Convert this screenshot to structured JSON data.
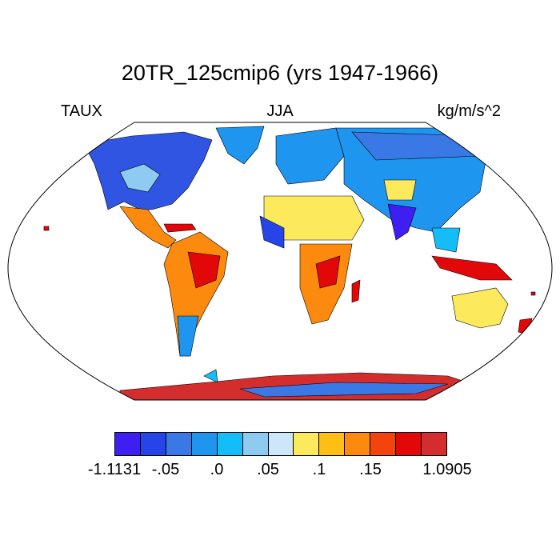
{
  "header": {
    "title": "20TR_125cmip6 (yrs 1947-1966)",
    "left_label": "TAUX",
    "center_label": "JJA",
    "right_label": "kg/m/s^2"
  },
  "colorbar": {
    "colors": [
      "#3f1ef2",
      "#2645e9",
      "#3a78e6",
      "#1e96f0",
      "#14bdf7",
      "#8fcbf0",
      "#cde7f8",
      "#fde95c",
      "#fdbf14",
      "#fb8a0e",
      "#f4440e",
      "#e2080a",
      "#d42d2d"
    ],
    "tick_labels": [
      "-1.1131",
      "-.05",
      ".0",
      ".05",
      ".1",
      ".15",
      "1.0905"
    ]
  },
  "map": {
    "projection": "Robinson",
    "season": "JJA",
    "variable": "TAUX",
    "land_color_by_value": true,
    "ocean_color": "#ffffff"
  }
}
